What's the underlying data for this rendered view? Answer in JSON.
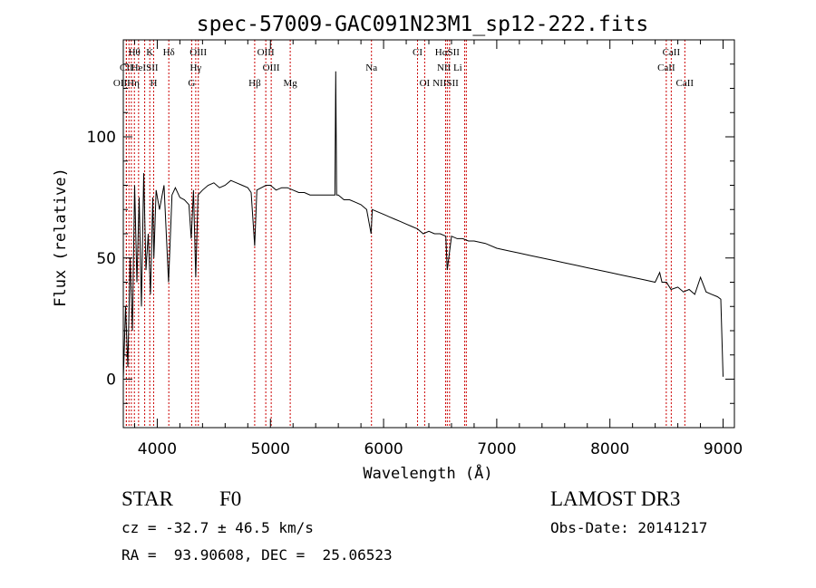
{
  "chart_data": {
    "type": "line",
    "title": "spec-57009-GAC091N23M1_sp12-222.fits",
    "xlabel": "Wavelength (Å)",
    "ylabel": "Flux (relative)",
    "xlim": [
      3700,
      9100
    ],
    "ylim": [
      -20,
      140
    ],
    "xticks": [
      4000,
      5000,
      6000,
      7000,
      8000,
      9000
    ],
    "yticks": [
      0,
      50,
      100
    ],
    "line_color": "#000000",
    "marker_color": "#cc0000",
    "spectrum": {
      "name": "flux",
      "x": [
        3700,
        3720,
        3740,
        3760,
        3780,
        3800,
        3820,
        3840,
        3860,
        3880,
        3900,
        3920,
        3940,
        3960,
        3970,
        3990,
        4020,
        4060,
        4100,
        4130,
        4160,
        4200,
        4240,
        4280,
        4300,
        4320,
        4340,
        4360,
        4400,
        4450,
        4500,
        4550,
        4600,
        4650,
        4700,
        4750,
        4800,
        4830,
        4861,
        4880,
        4920,
        4960,
        5000,
        5050,
        5100,
        5150,
        5200,
        5250,
        5300,
        5350,
        5400,
        5450,
        5500,
        5540,
        5570,
        5577,
        5585,
        5600,
        5650,
        5700,
        5750,
        5800,
        5850,
        5890,
        5900,
        5950,
        6000,
        6050,
        6100,
        6150,
        6200,
        6250,
        6300,
        6350,
        6400,
        6450,
        6500,
        6550,
        6563,
        6600,
        6650,
        6700,
        6750,
        6800,
        6900,
        7000,
        7100,
        7200,
        7300,
        7400,
        7500,
        7600,
        7700,
        7800,
        7900,
        8000,
        8100,
        8200,
        8300,
        8400,
        8440,
        8460,
        8500,
        8540,
        8600,
        8650,
        8700,
        8750,
        8800,
        8850,
        8900,
        8950,
        8980,
        9000
      ],
      "y": [
        0,
        30,
        5,
        50,
        20,
        80,
        40,
        75,
        30,
        85,
        45,
        60,
        35,
        75,
        50,
        78,
        70,
        80,
        40,
        76,
        79,
        75,
        74,
        72,
        58,
        78,
        42,
        76,
        78,
        80,
        81,
        79,
        80,
        82,
        81,
        80,
        79,
        77,
        55,
        78,
        79,
        80,
        80,
        78,
        79,
        79,
        78,
        77,
        77,
        76,
        76,
        76,
        76,
        76,
        76,
        127,
        76,
        76,
        74,
        74,
        73,
        72,
        70,
        60,
        70,
        69,
        68,
        67,
        66,
        65,
        64,
        63,
        62,
        60,
        61,
        60,
        60,
        59,
        45,
        59,
        58,
        58,
        57,
        57,
        56,
        54,
        53,
        52,
        51,
        50,
        49,
        48,
        47,
        46,
        45,
        44,
        43,
        42,
        41,
        40,
        44,
        40,
        40,
        37,
        38,
        36,
        37,
        35,
        42,
        36,
        35,
        34,
        33,
        1
      ]
    },
    "line_markers": [
      {
        "label": "Hθ",
        "wavelength": 3798,
        "row": 0
      },
      {
        "label": "K",
        "wavelength": 3934,
        "row": 0
      },
      {
        "label": "Hδ",
        "wavelength": 4102,
        "row": 0
      },
      {
        "label": "OIII",
        "wavelength": 4363,
        "row": 0
      },
      {
        "label": "OIII",
        "wavelength": 4959,
        "row": 0
      },
      {
        "label": "CI",
        "wavelength": 6300,
        "row": 0
      },
      {
        "label": "HαSII",
        "wavelength": 6563,
        "row": 0
      },
      {
        "label": "CaII",
        "wavelength": 8542,
        "row": 0
      },
      {
        "label": "CII",
        "wavelength": 3727,
        "row": 1
      },
      {
        "label": "HeISII",
        "wavelength": 3889,
        "row": 1
      },
      {
        "label": "Hγ",
        "wavelength": 4340,
        "row": 1
      },
      {
        "label": "OIII",
        "wavelength": 5007,
        "row": 1
      },
      {
        "label": "Na",
        "wavelength": 5893,
        "row": 1
      },
      {
        "label": "NII Li",
        "wavelength": 6583,
        "row": 1
      },
      {
        "label": "CaII",
        "wavelength": 8498,
        "row": 1
      },
      {
        "label": "OIIHη",
        "wavelength": 3727,
        "row": 2
      },
      {
        "label": "H",
        "wavelength": 3968,
        "row": 2
      },
      {
        "label": "G",
        "wavelength": 4304,
        "row": 2
      },
      {
        "label": "Hβ",
        "wavelength": 4861,
        "row": 2
      },
      {
        "label": "Mg",
        "wavelength": 5175,
        "row": 2
      },
      {
        "label": "OI",
        "wavelength": 6363,
        "row": 2
      },
      {
        "label": "NIISII",
        "wavelength": 6548,
        "row": 2
      },
      {
        "label": "CaII",
        "wavelength": 8662,
        "row": 2
      }
    ],
    "extra_marker_lines": [
      3750,
      3771,
      3835,
      6716,
      6731
    ]
  },
  "info": {
    "object_class": "STAR",
    "subclass": "F0",
    "survey": "LAMOST DR3",
    "cz": "cz = -32.7 ± 46.5 km/s",
    "obs_date": "Obs-Date: 20141217",
    "coords": "RA =  93.90608, DEC =  25.06523"
  }
}
